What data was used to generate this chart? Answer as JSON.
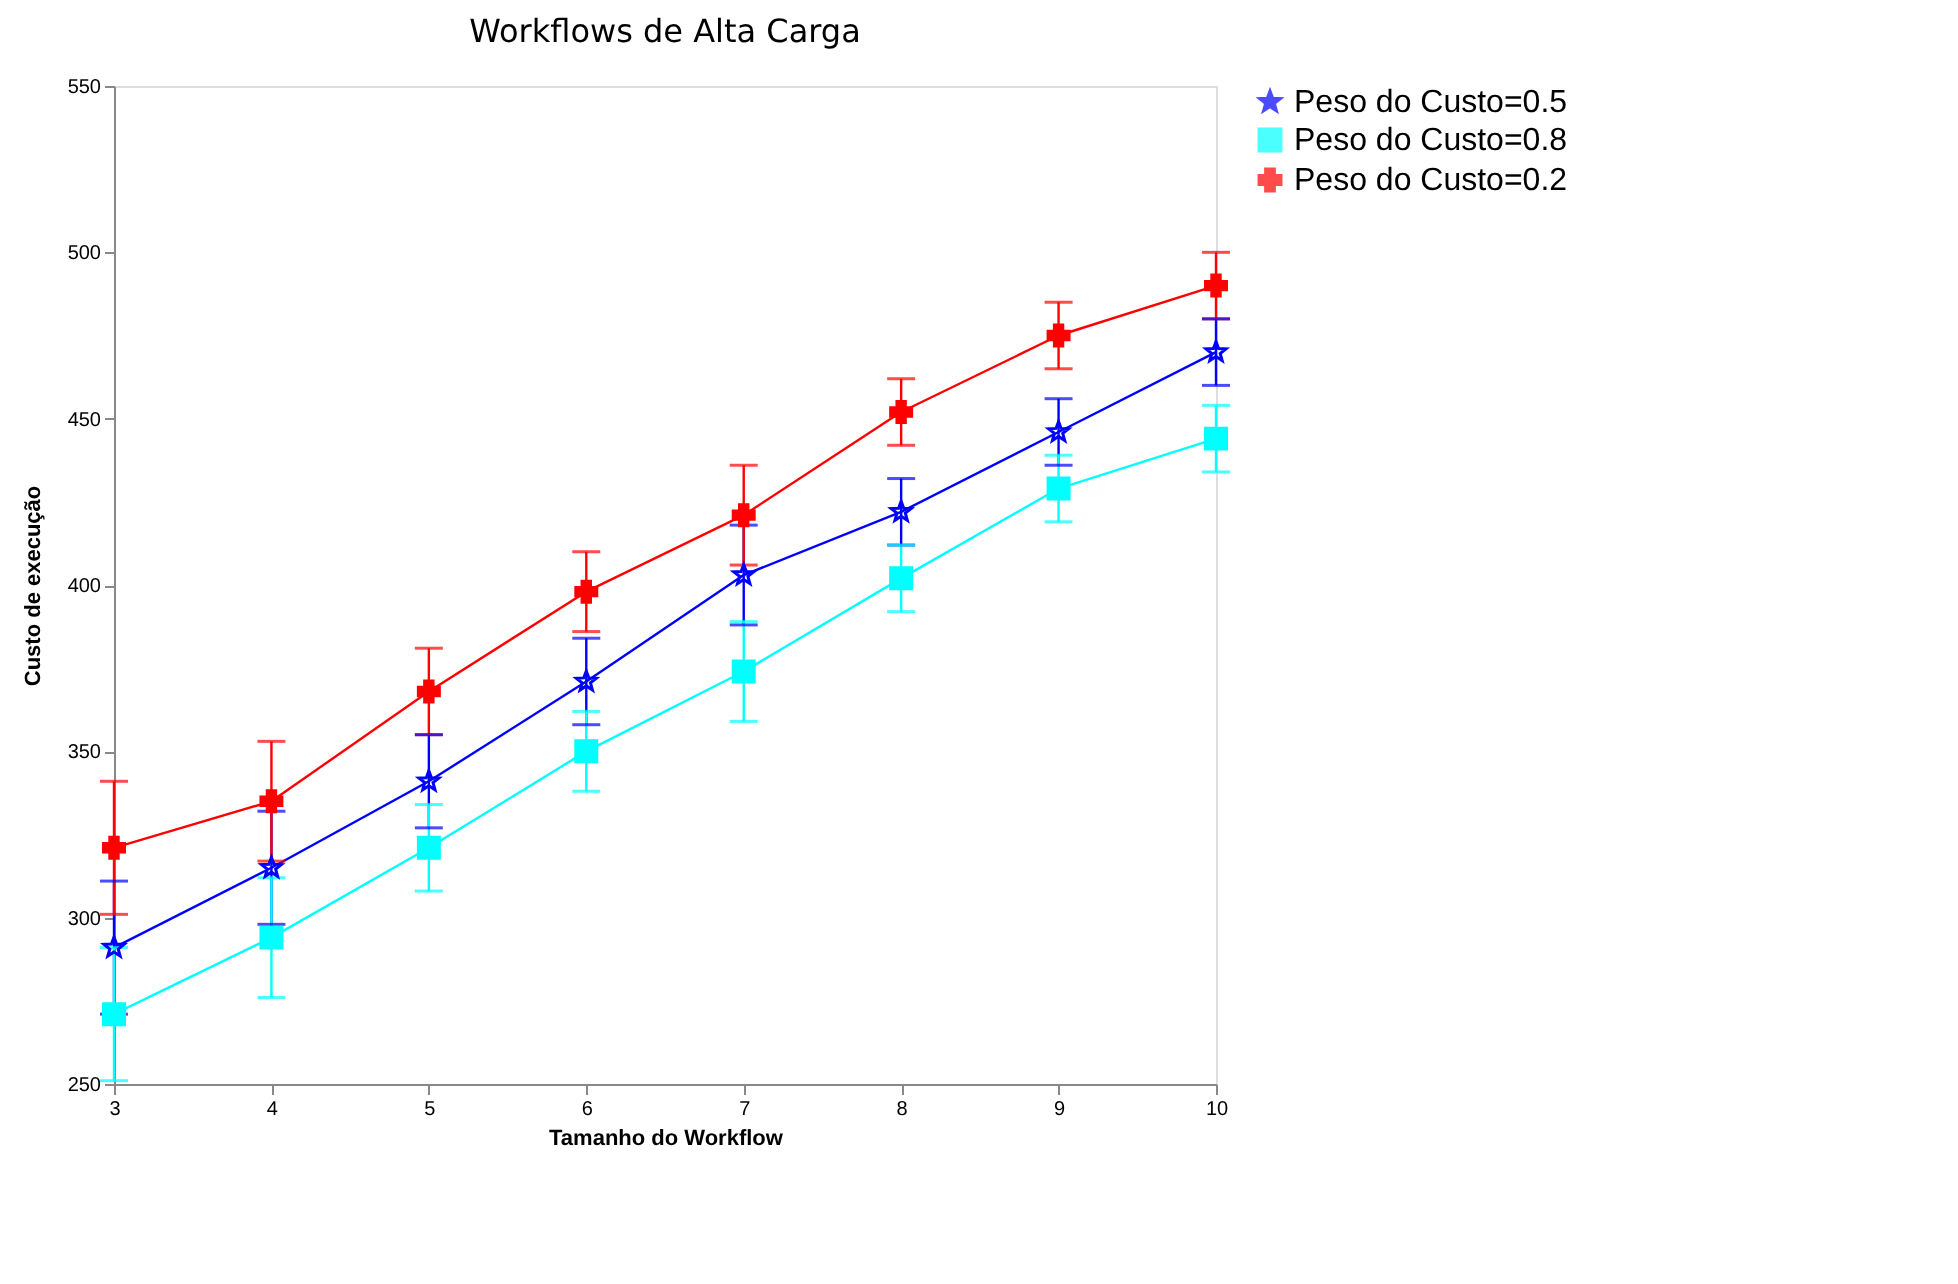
{
  "chart_data": {
    "type": "line",
    "title": "Workflows de Alta Carga",
    "xlabel": "Tamanho do Workflow",
    "ylabel": "Custo de execução",
    "x": [
      3,
      4,
      5,
      6,
      7,
      8,
      9,
      10
    ],
    "series": [
      {
        "name": "Peso do Custo=0.5",
        "color": "#0000ff",
        "marker": "star",
        "values": [
          291,
          315,
          341,
          371,
          403,
          422,
          446,
          470
        ],
        "errors": [
          20,
          17,
          14,
          13,
          15,
          10,
          10,
          10
        ]
      },
      {
        "name": "Peso do Custo=0.8",
        "color": "#00ffff",
        "marker": "square",
        "values": [
          271,
          294,
          321,
          350,
          374,
          402,
          429,
          444
        ],
        "errors": [
          20,
          18,
          13,
          12,
          15,
          10,
          10,
          10
        ]
      },
      {
        "name": "Peso do Custo=0.2",
        "color": "#ff0000",
        "marker": "cross",
        "values": [
          321,
          335,
          368,
          398,
          421,
          452,
          475,
          490
        ],
        "errors": [
          20,
          18,
          13,
          12,
          15,
          10,
          10,
          10
        ]
      }
    ],
    "xlim": [
      3,
      10
    ],
    "xticks": [
      3,
      4,
      5,
      6,
      7,
      8,
      9,
      10
    ],
    "ylim": [
      250,
      550
    ],
    "yticks": [
      250,
      300,
      350,
      400,
      450,
      500,
      550
    ],
    "grid": false,
    "legend": "top right",
    "line_style": "solid"
  }
}
